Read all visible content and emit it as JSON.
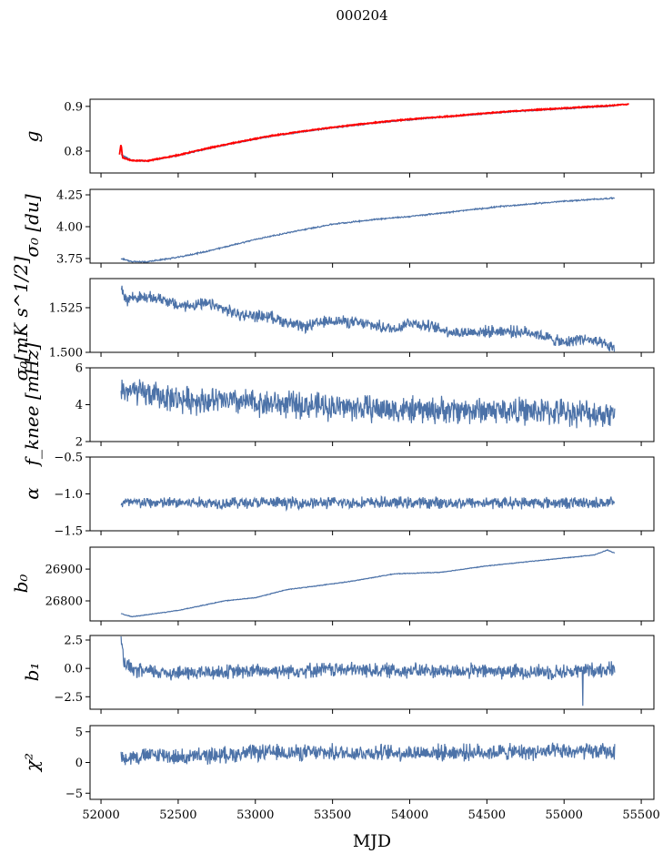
{
  "chart_data": {
    "type": "line",
    "title": "000204",
    "xlabel": "MJD",
    "xlim": [
      51929,
      55582
    ],
    "xticks": [
      52000,
      52500,
      53000,
      53500,
      54000,
      54500,
      55000,
      55500
    ],
    "line_color": "#4c72a8",
    "overlay_color": "#ff0000",
    "panels": [
      {
        "ylabel": "g",
        "ylim": [
          0.751,
          0.916
        ],
        "yticks": [
          "0.9",
          "0.8"
        ],
        "ytick_values": [
          0.9,
          0.8
        ],
        "x": [
          52130,
          52200,
          52300,
          52500,
          52700,
          52900,
          53100,
          53300,
          53500,
          53700,
          53900,
          54100,
          54300,
          54500,
          54700,
          54900,
          55100,
          55330
        ],
        "y": [
          0.792,
          0.779,
          0.778,
          0.79,
          0.806,
          0.82,
          0.833,
          0.843,
          0.852,
          0.86,
          0.867,
          0.873,
          0.878,
          0.884,
          0.889,
          0.893,
          0.897,
          0.901
        ],
        "noise": 0.001,
        "overlay": {
          "x": [
            52120,
            52130,
            52140,
            52200,
            52300,
            52500,
            52700,
            52900,
            53100,
            53300,
            53500,
            53700,
            53900,
            54100,
            54300,
            54500,
            54700,
            54900,
            55100,
            55300,
            55420
          ],
          "y": [
            0.793,
            0.815,
            0.785,
            0.779,
            0.778,
            0.791,
            0.807,
            0.821,
            0.834,
            0.844,
            0.853,
            0.861,
            0.868,
            0.874,
            0.879,
            0.885,
            0.89,
            0.894,
            0.898,
            0.902,
            0.905
          ]
        }
      },
      {
        "ylabel": "σ₀ [du]",
        "ylim": [
          3.714,
          4.293
        ],
        "yticks": [
          "4.25",
          "4.00",
          "3.75"
        ],
        "ytick_values": [
          4.25,
          4.0,
          3.75
        ],
        "x": [
          52130,
          52200,
          52300,
          52500,
          52700,
          52800,
          53000,
          53200,
          53500,
          53800,
          54000,
          54300,
          54600,
          55000,
          55330
        ],
        "y": [
          3.75,
          3.725,
          3.725,
          3.76,
          3.81,
          3.84,
          3.9,
          3.95,
          4.02,
          4.06,
          4.08,
          4.12,
          4.16,
          4.2,
          4.225
        ],
        "noise": 0.004
      },
      {
        "ylabel": "σ₀[mK s^1/2]",
        "ylim": [
          1.5,
          1.5413
        ],
        "yticks": [
          "1.525",
          "1.500"
        ],
        "ytick_values": [
          1.525,
          1.5
        ],
        "x": [
          52130,
          52160,
          52200,
          52400,
          52500,
          52700,
          52900,
          53100,
          53300,
          53500,
          53700,
          53900,
          54000,
          54300,
          54600,
          54800,
          55000,
          55100,
          55200,
          55330
        ],
        "y": [
          1.538,
          1.529,
          1.531,
          1.53,
          1.526,
          1.527,
          1.521,
          1.52,
          1.514,
          1.518,
          1.516,
          1.513,
          1.517,
          1.511,
          1.512,
          1.511,
          1.505,
          1.508,
          1.506,
          1.502
        ],
        "noise": 0.0025
      },
      {
        "ylabel": "f_knee [mHz]",
        "ylim": [
          2,
          6
        ],
        "yticks": [
          "6",
          "4",
          "2"
        ],
        "ytick_values": [
          6,
          4,
          2
        ],
        "x": [
          52130,
          52500,
          53000,
          53500,
          54000,
          54500,
          55000,
          55330
        ],
        "y": [
          4.8,
          4.3,
          4.1,
          3.9,
          3.7,
          3.7,
          3.6,
          3.5
        ],
        "noise": 0.55
      },
      {
        "ylabel": "α",
        "ylim": [
          -1.5,
          -0.5
        ],
        "yticks": [
          "−0.5",
          "−1.0",
          "−1.5"
        ],
        "ytick_values": [
          -0.5,
          -1.0,
          -1.5
        ],
        "x": [
          52130,
          55330
        ],
        "y": [
          -1.12,
          -1.12
        ],
        "noise": 0.06
      },
      {
        "ylabel": "b₀",
        "ylim": [
          26737,
          26969
        ],
        "yticks": [
          "26900",
          "26800"
        ],
        "ytick_values": [
          26900,
          26800
        ],
        "x": [
          52130,
          52200,
          52500,
          52800,
          53000,
          53200,
          53600,
          53900,
          54200,
          54500,
          54800,
          55100,
          55200,
          55280,
          55330
        ],
        "y": [
          26760,
          26750,
          26770,
          26800,
          26810,
          26835,
          26860,
          26885,
          26890,
          26910,
          26925,
          26940,
          26945,
          26960,
          26950
        ],
        "noise": 0.8
      },
      {
        "ylabel": "b₁",
        "ylim": [
          -3.6,
          2.9
        ],
        "yticks": [
          "2.5",
          "0.0",
          "−2.5"
        ],
        "ytick_values": [
          2.5,
          0,
          -2.5
        ],
        "x": [
          52130,
          52150,
          52200,
          52500,
          53500,
          54000,
          55000,
          55330
        ],
        "y": [
          2.3,
          0.5,
          -0.2,
          -0.4,
          -0.1,
          -0.2,
          -0.3,
          0.0
        ],
        "noise": 0.5,
        "spike": {
          "x": 55120,
          "y": -3.3
        }
      },
      {
        "ylabel": "χ²",
        "ylim": [
          -6,
          6
        ],
        "yticks": [
          "5",
          "0",
          "−5"
        ],
        "ytick_values": [
          5,
          0,
          -5
        ],
        "x": [
          52130,
          52400,
          52500,
          53000,
          54000,
          55330
        ],
        "y": [
          0.8,
          1.3,
          0.8,
          1.6,
          1.6,
          1.8
        ],
        "noise": 1.0
      }
    ]
  }
}
